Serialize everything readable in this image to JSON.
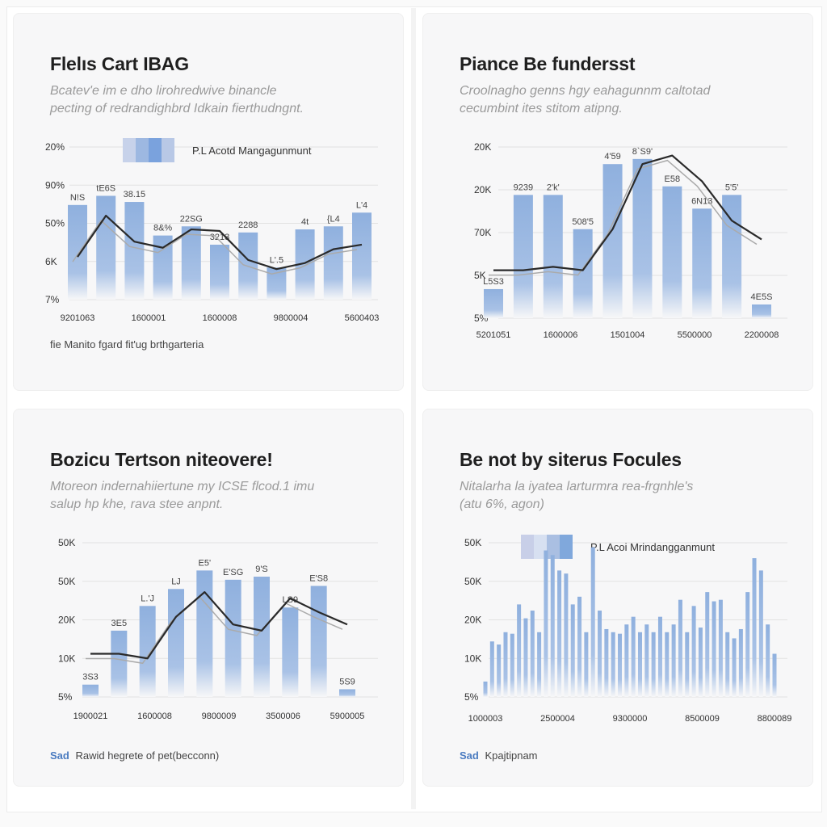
{
  "panels": [
    {
      "title": "Flelıs Cart IBAG",
      "subtitle_line1": "Bcatev'e im e dho lirohredwive binancle",
      "subtitle_line2": "pecting of redrandighbrd Idkain fierthudngnt.",
      "footnote_prefix": "",
      "footnote": "fie Manito fgard fit'ug brthgarteria",
      "chart_data": {
        "type": "bar",
        "title": "Flelıs Cart IBAG",
        "legend": "P.L Acotd Mangagunmunt",
        "legend_colors": [
          "#c7d2ea",
          "#9db8e1",
          "#7aa2dd",
          "#b8c8e6"
        ],
        "legend_position": "top-center",
        "y_tick_labels": [
          "20%",
          "90%",
          "50%",
          "6K",
          "7%"
        ],
        "x_tick_labels": [
          "9201063",
          "1600001",
          "1600008",
          "9800004",
          "5600403"
        ],
        "ylim": [
          0,
          100
        ],
        "values": [
          62,
          68,
          64,
          42,
          48,
          36,
          44,
          21,
          46,
          48,
          57
        ],
        "value_labels": [
          "N!S",
          "tE6S",
          "38.15",
          "8&%",
          "22SG",
          "3213",
          "2288",
          "L'.5",
          "4t",
          "{L4",
          "L'4"
        ],
        "line": [
          28,
          55,
          38,
          34,
          46,
          45,
          26,
          20,
          24,
          33,
          36
        ]
      }
    },
    {
      "title": "Piance Be fundersst",
      "subtitle_line1": "Croolnagho genns hgy eahagunnm caltotad",
      "subtitle_line2": "cecumbint ites stitom atipng.",
      "footnote_prefix": "",
      "footnote": "",
      "chart_data": {
        "type": "bar",
        "title": "Piance Be fundersst",
        "y_tick_labels": [
          "20K",
          "20K",
          "70K",
          "5K",
          "5%"
        ],
        "x_tick_labels": [
          "5201051",
          "1600006",
          "1501004",
          "5500000",
          "2200008"
        ],
        "ylim": [
          0,
          100
        ],
        "values": [
          17,
          72,
          72,
          52,
          90,
          93,
          77,
          64,
          72,
          8
        ],
        "value_labels": [
          "L5S3",
          "9239",
          "2'k'",
          "508'5",
          "4'59",
          "8`S9'",
          "E58",
          "6N13",
          "5'5'",
          "4E5S"
        ],
        "line": [
          28,
          28,
          30,
          28,
          52,
          90,
          95,
          80,
          57,
          46
        ]
      }
    },
    {
      "title": "Bozicu Tertson niteovere!",
      "subtitle_line1": "Mtoreon indernahiiertune my ICSE flcod.1 imu",
      "subtitle_line2": "salup hp khe, rava stee anpnt.",
      "footnote_prefix": "Sad",
      "footnote": "Rawid hegrete of pet(becconn)",
      "chart_data": {
        "type": "bar",
        "title": "Bozicu Tertson niteovere!",
        "y_tick_labels": [
          "50K",
          "50K",
          "20K",
          "10K",
          "5%"
        ],
        "x_tick_labels": [
          "1900021",
          "1600008",
          "9800009",
          "3500006",
          "5900005"
        ],
        "ylim": [
          0,
          100
        ],
        "values": [
          8,
          43,
          59,
          70,
          82,
          76,
          78,
          58,
          72,
          5
        ],
        "value_labels": [
          "3S3",
          "3E5",
          "L.'J",
          "LJ",
          "E5'",
          "E'SG",
          "9'S",
          "LS9",
          "E'S8",
          "5S9"
        ],
        "line": [
          28,
          28,
          25,
          52,
          68,
          47,
          43,
          64,
          55,
          47
        ]
      }
    },
    {
      "title": "Be not by siterus Focules",
      "subtitle_line1": "Nitalarha la iyatea larturmra rea-frgnhle's",
      "subtitle_line2": "(atu 6%, agon)",
      "footnote_prefix": "Sad",
      "footnote": "Kpajtipnam",
      "chart_data": {
        "type": "bar",
        "title": "Be not by siterus Focules",
        "legend": "P.L Acoi Mrindangganmunt",
        "legend_colors": [
          "#c8cfe8",
          "#d7e0f1",
          "#aabfe2",
          "#80a8dc"
        ],
        "legend_position": "top-center",
        "y_tick_labels": [
          "50K",
          "50K",
          "20K",
          "10K",
          "5%"
        ],
        "x_tick_labels": [
          "1000003",
          "2500004",
          "9300000",
          "8500009",
          "8800089"
        ],
        "ylim": [
          0,
          100
        ],
        "values": [
          10,
          36,
          34,
          42,
          41,
          60,
          51,
          56,
          42,
          95,
          92,
          82,
          80,
          60,
          65,
          42,
          97,
          56,
          44,
          42,
          41,
          47,
          52,
          42,
          47,
          42,
          52,
          42,
          47,
          63,
          42,
          59,
          45,
          68,
          62,
          63,
          42,
          38,
          44,
          68,
          90,
          82,
          47,
          28
        ]
      }
    }
  ]
}
